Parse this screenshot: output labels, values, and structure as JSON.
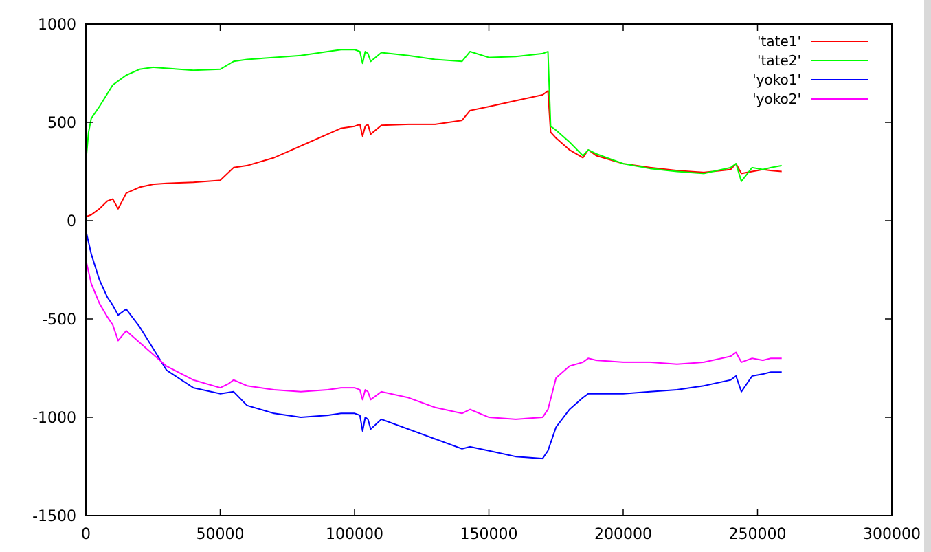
{
  "chart_data": {
    "type": "line",
    "title": "",
    "xlabel": "",
    "ylabel": "",
    "xlim": [
      0,
      300000
    ],
    "ylim": [
      -1500,
      1000
    ],
    "xticks": [
      0,
      50000,
      100000,
      150000,
      200000,
      250000,
      300000
    ],
    "xtick_labels": [
      "0",
      "50000",
      "100000",
      "150000",
      "200000",
      "250000",
      "300000"
    ],
    "yticks": [
      -1500,
      -1000,
      -500,
      0,
      500,
      1000
    ],
    "ytick_labels": [
      "-1500",
      "-1000",
      "-500",
      "0",
      "500",
      "1000"
    ],
    "grid": false,
    "legend_position": "top-right",
    "series": [
      {
        "name": "'tate1'",
        "color": "#ff0000",
        "x": [
          0,
          2000,
          5000,
          8000,
          10000,
          12000,
          15000,
          20000,
          25000,
          30000,
          40000,
          50000,
          55000,
          60000,
          70000,
          80000,
          90000,
          95000,
          100000,
          102000,
          103000,
          104000,
          105000,
          106000,
          110000,
          120000,
          130000,
          140000,
          143000,
          150000,
          160000,
          170000,
          172000,
          173000,
          175000,
          180000,
          185000,
          187000,
          190000,
          200000,
          210000,
          220000,
          230000,
          240000,
          242000,
          244000,
          248000,
          252000,
          255000,
          259000
        ],
        "y": [
          20,
          30,
          60,
          100,
          110,
          60,
          140,
          170,
          185,
          190,
          195,
          205,
          270,
          280,
          320,
          380,
          440,
          470,
          480,
          490,
          430,
          480,
          490,
          440,
          485,
          490,
          490,
          510,
          560,
          580,
          610,
          640,
          660,
          450,
          420,
          360,
          320,
          360,
          330,
          290,
          270,
          255,
          245,
          260,
          290,
          240,
          250,
          260,
          255,
          250
        ]
      },
      {
        "name": "'tate2'",
        "color": "#00ff00",
        "x": [
          0,
          1000,
          2000,
          5000,
          10000,
          12000,
          15000,
          20000,
          25000,
          30000,
          40000,
          50000,
          55000,
          60000,
          70000,
          80000,
          90000,
          95000,
          100000,
          102000,
          103000,
          104000,
          105000,
          106000,
          110000,
          120000,
          130000,
          140000,
          143000,
          150000,
          160000,
          170000,
          172000,
          173000,
          175000,
          180000,
          185000,
          187000,
          190000,
          200000,
          210000,
          220000,
          230000,
          240000,
          242000,
          244000,
          248000,
          252000,
          255000,
          259000
        ],
        "y": [
          300,
          450,
          520,
          580,
          690,
          710,
          740,
          770,
          780,
          775,
          765,
          770,
          810,
          820,
          830,
          840,
          860,
          870,
          870,
          860,
          800,
          860,
          850,
          810,
          855,
          840,
          820,
          810,
          860,
          830,
          835,
          850,
          860,
          480,
          460,
          400,
          330,
          360,
          340,
          290,
          265,
          250,
          240,
          270,
          290,
          200,
          270,
          260,
          270,
          280
        ]
      },
      {
        "name": "'yoko1'",
        "color": "#0000ff",
        "x": [
          0,
          2000,
          5000,
          8000,
          10000,
          12000,
          15000,
          20000,
          25000,
          30000,
          40000,
          50000,
          55000,
          60000,
          70000,
          80000,
          90000,
          95000,
          100000,
          102000,
          103000,
          104000,
          105000,
          106000,
          110000,
          120000,
          130000,
          140000,
          143000,
          150000,
          160000,
          170000,
          172000,
          175000,
          180000,
          185000,
          187000,
          190000,
          200000,
          210000,
          220000,
          230000,
          240000,
          242000,
          244000,
          248000,
          252000,
          255000,
          259000
        ],
        "y": [
          -50,
          -170,
          -300,
          -390,
          -430,
          -480,
          -450,
          -540,
          -650,
          -760,
          -850,
          -880,
          -870,
          -940,
          -980,
          -1000,
          -990,
          -980,
          -980,
          -990,
          -1070,
          -1000,
          -1010,
          -1060,
          -1010,
          -1060,
          -1110,
          -1160,
          -1150,
          -1170,
          -1200,
          -1210,
          -1170,
          -1050,
          -960,
          -900,
          -880,
          -880,
          -880,
          -870,
          -860,
          -840,
          -810,
          -790,
          -870,
          -790,
          -780,
          -770,
          -770
        ]
      },
      {
        "name": "'yoko2'",
        "color": "#ff00ff",
        "x": [
          0,
          2000,
          5000,
          8000,
          10000,
          12000,
          15000,
          20000,
          25000,
          30000,
          40000,
          50000,
          53000,
          55000,
          60000,
          70000,
          80000,
          90000,
          95000,
          100000,
          102000,
          103000,
          104000,
          105000,
          106000,
          110000,
          120000,
          130000,
          140000,
          143000,
          150000,
          160000,
          170000,
          172000,
          175000,
          180000,
          185000,
          187000,
          190000,
          200000,
          210000,
          220000,
          230000,
          240000,
          242000,
          244000,
          248000,
          252000,
          255000,
          259000
        ],
        "y": [
          -200,
          -320,
          -420,
          -490,
          -530,
          -610,
          -560,
          -620,
          -680,
          -740,
          -810,
          -850,
          -830,
          -810,
          -840,
          -860,
          -870,
          -860,
          -850,
          -850,
          -860,
          -910,
          -860,
          -870,
          -910,
          -870,
          -900,
          -950,
          -980,
          -960,
          -1000,
          -1010,
          -1000,
          -960,
          -800,
          -740,
          -720,
          -700,
          -710,
          -720,
          -720,
          -730,
          -720,
          -690,
          -670,
          -720,
          -700,
          -710,
          -700,
          -700
        ]
      }
    ]
  }
}
